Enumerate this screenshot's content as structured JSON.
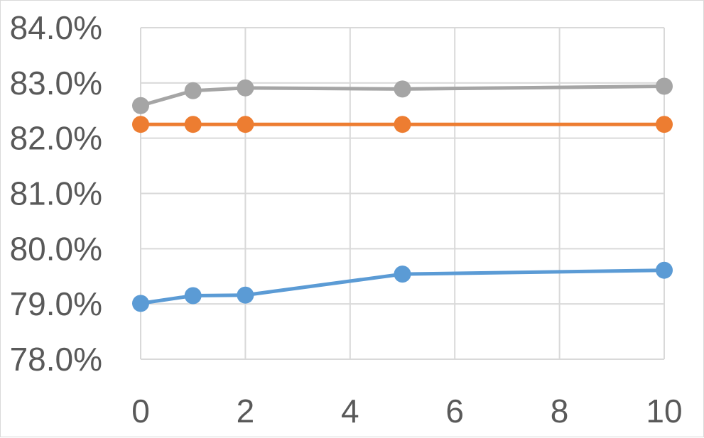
{
  "chart_data": {
    "type": "line",
    "title": "",
    "xlabel": "",
    "ylabel": "",
    "x": [
      0,
      1,
      2,
      5,
      10
    ],
    "xlim": [
      0,
      10
    ],
    "ylim": [
      78.0,
      84.0
    ],
    "x_ticks": [
      "0",
      "2",
      "4",
      "6",
      "8",
      "10"
    ],
    "y_ticks": [
      "78.0%",
      "79.0%",
      "80.0%",
      "81.0%",
      "82.0%",
      "83.0%",
      "84.0%"
    ],
    "grid": true,
    "legend": "none",
    "series": [
      {
        "color": "#a5a5a5",
        "values": [
          82.59,
          82.86,
          82.91,
          82.89,
          82.94
        ]
      },
      {
        "color": "#ed7d31",
        "values": [
          82.25,
          82.25,
          82.25,
          82.25,
          82.25
        ]
      },
      {
        "color": "#5b9bd5",
        "values": [
          79.01,
          79.15,
          79.16,
          79.54,
          79.61
        ]
      }
    ]
  }
}
